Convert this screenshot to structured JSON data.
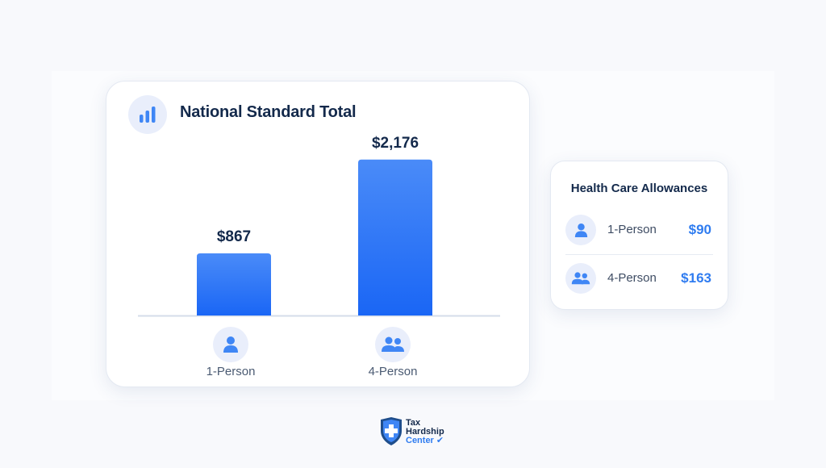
{
  "main_card": {
    "title": "National Standard Total",
    "icon": "bar-chart-icon"
  },
  "chart_data": {
    "type": "bar",
    "title": "National Standard Total",
    "categories": [
      "1-Person",
      "4-Person"
    ],
    "values": [
      867,
      2176
    ],
    "data_labels": [
      "$867",
      "$2,176"
    ],
    "category_icons": [
      "person-icon",
      "group-icon"
    ],
    "ylim": [
      0,
      2500
    ],
    "grid": false,
    "bar_color_top": "#4a8bf8",
    "bar_color_bottom": "#1a66f5"
  },
  "side_card": {
    "title": "Health Care Allowances",
    "rows": [
      {
        "label": "1-Person",
        "value": "$90",
        "icon": "person-icon"
      },
      {
        "label": "4-Person",
        "value": "$163",
        "icon": "group-icon"
      }
    ]
  },
  "logo": {
    "line1": "Tax",
    "line2": "Hardship",
    "line3": "Center"
  },
  "colors": {
    "accent": "#2f7cf0",
    "heading": "#13294b",
    "icon_bg": "#e9eefb"
  }
}
